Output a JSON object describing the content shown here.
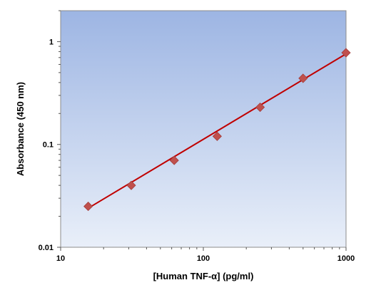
{
  "chart_data": {
    "type": "scatter",
    "title": "",
    "xlabel": "[Human TNF-α] (pg/ml)",
    "ylabel": "Absorbance (450 nm)",
    "x_scale": "log",
    "y_scale": "log",
    "xlim": [
      10,
      1000
    ],
    "ylim": [
      0.01,
      2
    ],
    "x_ticks": [
      10,
      100,
      1000
    ],
    "x_tick_labels": [
      "10",
      "100",
      "1000"
    ],
    "y_ticks": [
      0.01,
      0.1,
      1
    ],
    "y_tick_labels": [
      "0.01",
      "0.1",
      "1"
    ],
    "grid": false,
    "legend": "none",
    "series": [
      {
        "x": [
          15.6,
          31.25,
          62.5,
          125,
          250,
          500,
          1000
        ],
        "y": [
          0.025,
          0.04,
          0.07,
          0.12,
          0.23,
          0.44,
          0.78
        ],
        "marker": "diamond",
        "color": "#C0504D"
      }
    ],
    "fit_line": {
      "type": "power",
      "x": [
        15.6,
        1000
      ],
      "y": [
        0.024,
        0.76
      ],
      "color": "#C00000"
    },
    "background_gradient": [
      "#9DB5E3",
      "#E9EFF9"
    ]
  }
}
